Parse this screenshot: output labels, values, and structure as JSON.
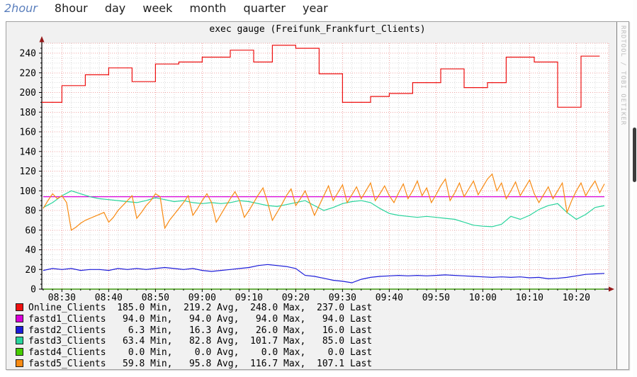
{
  "nav": {
    "items": [
      {
        "label": "2hour",
        "active": true
      },
      {
        "label": "8hour",
        "active": false
      },
      {
        "label": "day",
        "active": false
      },
      {
        "label": "week",
        "active": false
      },
      {
        "label": "month",
        "active": false
      },
      {
        "label": "quarter",
        "active": false
      },
      {
        "label": "year",
        "active": false
      }
    ]
  },
  "watermark": "RRDTOOL / TOBI OETIKER",
  "colors": {
    "grid_major": "#efa3a3",
    "grid_minor": "#dadada",
    "axis": "#000000",
    "arrow": "#961919",
    "plot_background": "#ffffff",
    "card_background": "#f1f1f1"
  },
  "chart_data": {
    "type": "line",
    "title": "exec gauge (Freifunk_Frankfurt_Clients)",
    "x_axis": {
      "start": "08:26",
      "end": "10:26",
      "tick_labels": [
        "08:30",
        "08:40",
        "08:50",
        "09:00",
        "09:10",
        "09:20",
        "09:30",
        "09:40",
        "09:50",
        "10:00",
        "10:10",
        "10:20"
      ],
      "major_grid_minutes": 10,
      "minor_grid_minutes": 2
    },
    "y_axis": {
      "min": 0,
      "max": 250,
      "tick_labels": [
        "0",
        "20",
        "40",
        "60",
        "80",
        "100",
        "120",
        "140",
        "160",
        "180",
        "200",
        "220",
        "240"
      ],
      "tick_step": 20,
      "minor_step": 5
    },
    "series": [
      {
        "name": "Online_Clients",
        "color": "#ee1010",
        "style": "step",
        "points": [
          [
            "08:26",
            190
          ],
          [
            "08:30",
            207
          ],
          [
            "08:35",
            218
          ],
          [
            "08:40",
            225
          ],
          [
            "08:45",
            211
          ],
          [
            "08:50",
            229
          ],
          [
            "08:55",
            231
          ],
          [
            "09:00",
            236
          ],
          [
            "09:06",
            243
          ],
          [
            "09:11",
            231
          ],
          [
            "09:15",
            248
          ],
          [
            "09:20",
            245
          ],
          [
            "09:25",
            219
          ],
          [
            "09:30",
            190
          ],
          [
            "09:36",
            196
          ],
          [
            "09:40",
            199
          ],
          [
            "09:45",
            210
          ],
          [
            "09:51",
            224
          ],
          [
            "09:56",
            205
          ],
          [
            "10:01",
            210
          ],
          [
            "10:05",
            236
          ],
          [
            "10:11",
            231
          ],
          [
            "10:16",
            185
          ],
          [
            "10:21",
            237
          ],
          [
            "10:25",
            237
          ]
        ]
      },
      {
        "name": "fastd1_Clients",
        "color": "#d900d9",
        "style": "line",
        "points": [
          [
            "08:26",
            94
          ],
          [
            "10:26",
            94
          ]
        ]
      },
      {
        "name": "fastd2_Clients",
        "color": "#1c1cd9",
        "style": "sampled",
        "start": "08:26",
        "step_min": 2,
        "values": [
          19,
          21,
          20,
          21,
          19,
          20,
          20,
          19,
          21,
          20,
          21,
          20,
          21,
          22,
          21,
          20,
          21,
          19,
          18,
          19,
          20,
          21,
          22,
          24,
          25,
          24,
          23,
          21,
          14,
          13,
          11,
          9,
          8,
          6.5,
          10,
          12,
          13,
          13.5,
          14,
          13.5,
          14,
          13.5,
          14,
          14.5,
          14,
          13.5,
          13,
          12.5,
          12,
          12.5,
          12,
          12.5,
          11.5,
          12,
          10.5,
          11,
          12,
          13.5,
          15,
          15.5,
          16
        ]
      },
      {
        "name": "fastd3_Clients",
        "color": "#28d49c",
        "style": "sampled",
        "start": "08:26",
        "step_min": 2,
        "values": [
          83,
          88,
          95,
          100,
          97,
          94,
          92,
          91,
          90,
          89,
          88,
          90,
          93,
          91,
          89,
          90,
          88,
          87,
          88,
          87,
          88,
          90,
          89,
          87,
          85,
          84,
          86,
          88,
          90,
          85,
          80,
          83,
          87,
          89,
          90,
          88,
          82,
          77,
          75,
          74,
          73,
          74,
          73,
          72,
          71,
          68,
          65,
          64,
          63.5,
          66,
          74,
          71,
          75,
          81,
          85,
          87,
          78,
          71,
          76,
          83,
          85
        ]
      },
      {
        "name": "fastd4_Clients",
        "color": "#46cc00",
        "style": "line",
        "points": [
          [
            "08:26",
            0
          ],
          [
            "10:26",
            0
          ]
        ]
      },
      {
        "name": "fastd5_Clients",
        "color": "#f88a12",
        "style": "sampled",
        "start": "08:26",
        "step_min": 1,
        "values": [
          82,
          90,
          97,
          92,
          95,
          88,
          60,
          63,
          67,
          70,
          72,
          74,
          76,
          78,
          68,
          73,
          80,
          85,
          90,
          95,
          72,
          78,
          85,
          90,
          97,
          94,
          62,
          70,
          76,
          82,
          88,
          95,
          75,
          82,
          90,
          97,
          88,
          68,
          76,
          84,
          92,
          99,
          90,
          73,
          80,
          88,
          96,
          103,
          88,
          70,
          78,
          86,
          95,
          102,
          85,
          92,
          100,
          88,
          75,
          85,
          95,
          105,
          90,
          98,
          106,
          88,
          96,
          104,
          92,
          100,
          108,
          90,
          97,
          105,
          95,
          88,
          98,
          107,
          92,
          100,
          110,
          95,
          103,
          88,
          96,
          105,
          112,
          90,
          98,
          108,
          94,
          102,
          110,
          96,
          104,
          112,
          117,
          100,
          108,
          92,
          100,
          109,
          95,
          103,
          111,
          97,
          88,
          96,
          104,
          92,
          100,
          108,
          78,
          90,
          100,
          108,
          95,
          103,
          110,
          98,
          107
        ]
      }
    ],
    "legend": [
      {
        "name": "Online_Clients",
        "color": "#ee1010",
        "min": "185.0",
        "avg": "219.2",
        "max": "248.0",
        "last": "237.0",
        "text": "Online_Clients  185.0 Min,  219.2 Avg,  248.0 Max,  237.0 Last"
      },
      {
        "name": "fastd1_Clients",
        "color": "#d900d9",
        "min": "94.0",
        "avg": "94.0",
        "max": "94.0",
        "last": "94.0",
        "text": "fastd1_Clients   94.0 Min,   94.0 Avg,   94.0 Max,   94.0 Last"
      },
      {
        "name": "fastd2_Clients",
        "color": "#1c1cd9",
        "min": "6.3",
        "avg": "16.3",
        "max": "26.0",
        "last": "16.0",
        "text": "fastd2_Clients    6.3 Min,   16.3 Avg,   26.0 Max,   16.0 Last"
      },
      {
        "name": "fastd3_Clients",
        "color": "#28d49c",
        "min": "63.4",
        "avg": "82.8",
        "max": "101.7",
        "last": "85.0",
        "text": "fastd3_Clients   63.4 Min,   82.8 Avg,  101.7 Max,   85.0 Last"
      },
      {
        "name": "fastd4_Clients",
        "color": "#46cc00",
        "min": "0.0",
        "avg": "0.0",
        "max": "0.0",
        "last": "0.0",
        "text": "fastd4_Clients    0.0 Min,    0.0 Avg,    0.0 Max,    0.0 Last"
      },
      {
        "name": "fastd5_Clients",
        "color": "#f88a12",
        "min": "59.8",
        "avg": "95.8",
        "max": "116.7",
        "last": "107.1",
        "text": "fastd5_Clients   59.8 Min,   95.8 Avg,  116.7 Max,  107.1 Last"
      }
    ],
    "legend_position": "bottom-left",
    "grid": true
  }
}
